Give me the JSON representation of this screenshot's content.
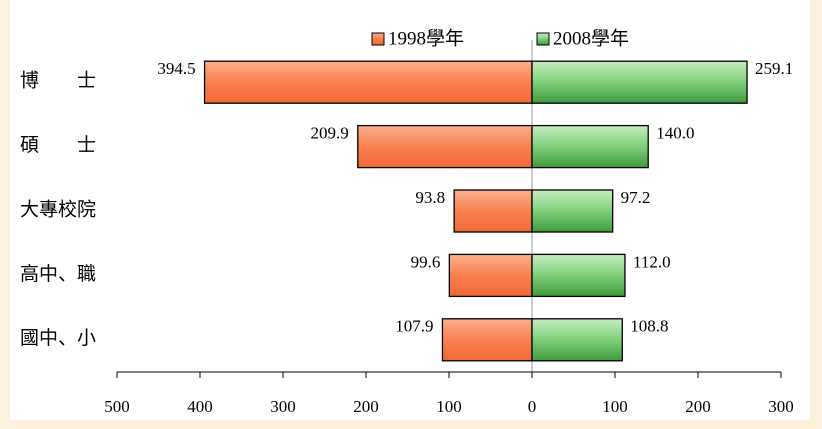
{
  "chart_data": {
    "type": "bar",
    "orientation": "horizontal",
    "categories": [
      "博　　士",
      "碩　　士",
      "大專校院",
      "高中、職",
      "國中、小"
    ],
    "series": [
      {
        "name": "1998學年",
        "color": "#f9804f",
        "values": [
          394.5,
          209.9,
          93.8,
          99.6,
          107.9
        ],
        "value_labels": [
          "394.5",
          "209.9",
          "93.8",
          "99.6",
          "107.9"
        ]
      },
      {
        "name": "2008學年",
        "color": "#7fcf7a",
        "axis": "x2",
        "values": [
          259.1,
          140.0,
          97.2,
          112.0,
          108.8
        ],
        "value_labels": [
          "259.1",
          "140.0",
          "97.2",
          "112.0",
          "108.8"
        ]
      }
    ],
    "xlim": [
      500,
      0
    ],
    "xticks": [
      500,
      400,
      300,
      200,
      100
    ],
    "x2lim": [
      0,
      300
    ],
    "x2ticks": [
      0,
      100,
      200,
      300
    ]
  }
}
